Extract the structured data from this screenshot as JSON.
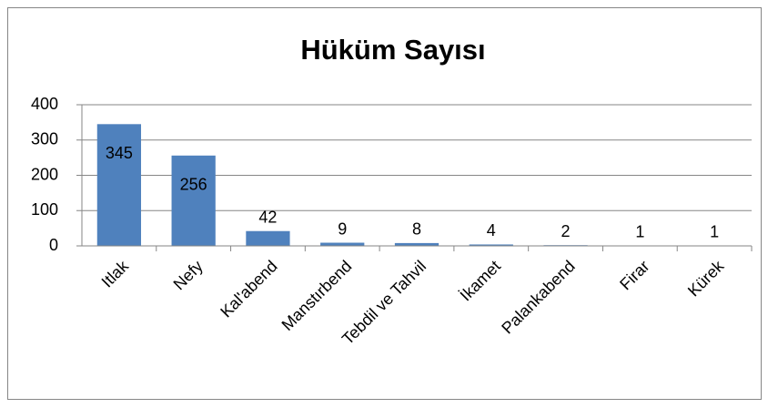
{
  "chart_data": {
    "type": "bar",
    "title": "Hüküm Sayısı",
    "categories": [
      "Itlak",
      "Nefy",
      "Kal'abend",
      "Manstırbend",
      "Tebdil ve Tahvil",
      "İkamet",
      "Palankabend",
      "Firar",
      "Kürek"
    ],
    "values": [
      345,
      256,
      42,
      9,
      8,
      4,
      2,
      1,
      1
    ],
    "color": "#4f81bd",
    "ylim": [
      0,
      400
    ],
    "yticks": [
      0,
      100,
      200,
      300,
      400
    ],
    "grid": true,
    "data_labels": true
  }
}
